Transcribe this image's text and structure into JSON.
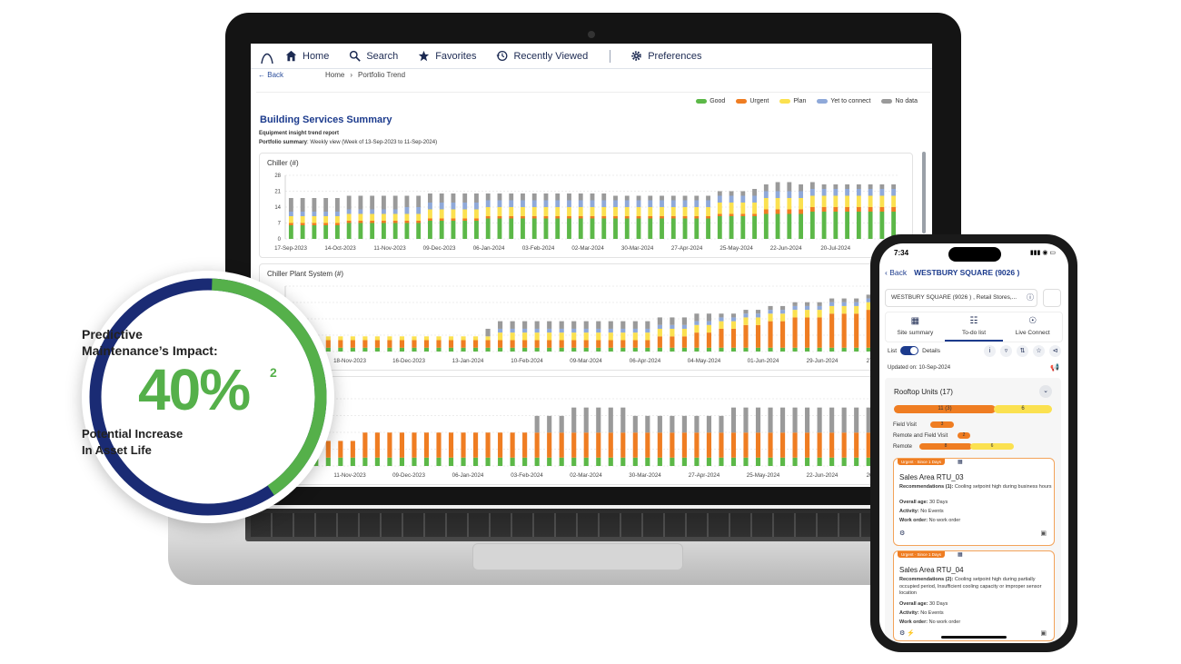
{
  "nav": {
    "home": "Home",
    "search": "Search",
    "favorites": "Favorites",
    "recently_viewed": "Recently Viewed",
    "preferences": "Preferences"
  },
  "breadcrumb": {
    "back": "Back",
    "home": "Home",
    "current": "Portfolio Trend"
  },
  "legend": [
    {
      "label": "Good",
      "color": "#5cb848"
    },
    {
      "label": "Urgent",
      "color": "#ef7d22"
    },
    {
      "label": "Plan",
      "color": "#fbe150"
    },
    {
      "label": "Yet to connect",
      "color": "#8fa9d9"
    },
    {
      "label": "No data",
      "color": "#9a9a9a"
    }
  ],
  "report": {
    "title": "Building Services Summary",
    "subtitle": "Equipment insight trend report",
    "summary_label": "Portfolio summary",
    "summary_text": ": Weekly view (Week of 13-Sep-2023 to 11-Sep-2024)"
  },
  "chart_data": [
    {
      "type": "bar",
      "title": "Chiller (#)",
      "stacked": true,
      "ylim": [
        0,
        28
      ],
      "yticks": [
        0,
        7,
        14,
        21,
        28
      ],
      "xtick_labels": [
        "17-Sep-2023",
        "14-Oct-2023",
        "11-Nov-2023",
        "09-Dec-2023",
        "06-Jan-2024",
        "03-Feb-2024",
        "02-Mar-2024",
        "30-Mar-2024",
        "27-Apr-2024",
        "25-May-2024",
        "22-Jun-2024",
        "20-Jul-2024",
        "31"
      ],
      "series": [
        {
          "name": "Good",
          "values": [
            6,
            6,
            6,
            6,
            6,
            7,
            7,
            7,
            7,
            7,
            7,
            7,
            8,
            8,
            8,
            8,
            8,
            9,
            9,
            9,
            9,
            9,
            9,
            9,
            9,
            9,
            9,
            9,
            9,
            9,
            9,
            9,
            9,
            9,
            9,
            9,
            9,
            10,
            10,
            10,
            10,
            11,
            11,
            11,
            11,
            12,
            12,
            12,
            12,
            12,
            12,
            12,
            12
          ]
        },
        {
          "name": "Urgent",
          "values": [
            1,
            1,
            1,
            1,
            1,
            1,
            1,
            1,
            1,
            1,
            1,
            1,
            1,
            1,
            1,
            1,
            1,
            1,
            1,
            1,
            1,
            1,
            1,
            1,
            1,
            1,
            1,
            1,
            1,
            1,
            1,
            1,
            1,
            1,
            1,
            1,
            1,
            1,
            1,
            1,
            1,
            2,
            2,
            2,
            2,
            2,
            2,
            2,
            2,
            2,
            2,
            2,
            2
          ]
        },
        {
          "name": "Plan",
          "values": [
            3,
            3,
            3,
            3,
            3,
            3,
            3,
            3,
            3,
            3,
            3,
            3,
            4,
            4,
            4,
            4,
            4,
            4,
            4,
            4,
            4,
            4,
            4,
            4,
            4,
            4,
            4,
            4,
            4,
            4,
            4,
            4,
            4,
            4,
            4,
            4,
            4,
            5,
            5,
            5,
            5,
            5,
            5,
            5,
            5,
            5,
            5,
            5,
            5,
            5,
            5,
            5,
            5
          ]
        },
        {
          "name": "Yet to connect",
          "values": [
            2,
            2,
            2,
            2,
            2,
            2,
            2,
            2,
            2,
            2,
            3,
            3,
            3,
            3,
            3,
            3,
            3,
            3,
            3,
            3,
            3,
            3,
            3,
            3,
            3,
            3,
            3,
            3,
            3,
            3,
            3,
            3,
            3,
            3,
            3,
            3,
            3,
            3,
            3,
            3,
            3,
            3,
            3,
            3,
            3,
            3,
            3,
            3,
            3,
            3,
            3,
            3,
            3
          ]
        },
        {
          "name": "No data",
          "values": [
            6,
            6,
            6,
            6,
            6,
            6,
            6,
            6,
            6,
            6,
            5,
            5,
            4,
            4,
            4,
            4,
            4,
            3,
            3,
            3,
            3,
            3,
            3,
            3,
            3,
            3,
            3,
            3,
            2,
            2,
            2,
            2,
            2,
            2,
            2,
            2,
            2,
            2,
            2,
            2,
            3,
            3,
            4,
            4,
            3,
            3,
            2,
            2,
            2,
            2,
            2,
            2,
            2
          ]
        }
      ]
    },
    {
      "type": "bar",
      "title": "Chiller Plant System (#)",
      "stacked": true,
      "xtick_labels": [
        "21-Oct-2023",
        "18-Nov-2023",
        "16-Dec-2023",
        "13-Jan-2024",
        "10-Feb-2024",
        "09-Mar-2024",
        "06-Apr-2024",
        "04-May-2024",
        "01-Jun-2024",
        "29-Jun-2024",
        "27-Jul-2024"
      ],
      "series": [
        {
          "name": "Good",
          "values": [
            1,
            1,
            1,
            1,
            1,
            1,
            1,
            1,
            1,
            1,
            1,
            1,
            1,
            1,
            1,
            1,
            1,
            1,
            1,
            1,
            1,
            1,
            1,
            1,
            1,
            1,
            1,
            1,
            1,
            1,
            1,
            1,
            1,
            1,
            1,
            1,
            1,
            1,
            1,
            1,
            1,
            1,
            1,
            1,
            1,
            1,
            1,
            1,
            1,
            1
          ]
        },
        {
          "name": "Urgent",
          "values": [
            2,
            2,
            2,
            2,
            2,
            2,
            2,
            2,
            2,
            2,
            2,
            2,
            2,
            2,
            2,
            2,
            2,
            2,
            2,
            2,
            2,
            2,
            2,
            2,
            2,
            2,
            2,
            2,
            2,
            2,
            3,
            3,
            3,
            4,
            4,
            5,
            5,
            6,
            6,
            7,
            7,
            8,
            8,
            8,
            9,
            9,
            9,
            10,
            10,
            10
          ]
        },
        {
          "name": "Plan",
          "values": [
            1,
            1,
            1,
            1,
            1,
            1,
            1,
            1,
            1,
            1,
            1,
            1,
            1,
            1,
            1,
            1,
            1,
            2,
            2,
            2,
            2,
            2,
            2,
            2,
            2,
            2,
            2,
            2,
            2,
            2,
            2,
            2,
            2,
            2,
            2,
            2,
            2,
            2,
            2,
            2,
            2,
            2,
            2,
            2,
            2,
            2,
            2,
            2,
            2,
            2
          ]
        },
        {
          "name": "Yet to connect",
          "values": [
            0,
            0,
            0,
            0,
            0,
            0,
            0,
            0,
            0,
            0,
            0,
            0,
            0,
            0,
            0,
            0,
            0,
            1,
            1,
            1,
            1,
            1,
            1,
            1,
            1,
            1,
            1,
            1,
            1,
            1,
            1,
            1,
            1,
            1,
            1,
            1,
            1,
            1,
            1,
            1,
            1,
            1,
            1,
            1,
            1,
            1,
            1,
            1,
            1,
            1
          ]
        },
        {
          "name": "No data",
          "values": [
            0,
            0,
            0,
            0,
            0,
            0,
            0,
            0,
            0,
            0,
            0,
            0,
            0,
            0,
            0,
            0,
            2,
            2,
            2,
            2,
            2,
            2,
            2,
            2,
            2,
            2,
            2,
            2,
            2,
            2,
            2,
            2,
            2,
            2,
            2,
            1,
            1,
            1,
            1,
            1,
            1,
            1,
            1,
            1,
            1,
            1,
            1,
            1,
            1,
            1
          ]
        }
      ]
    },
    {
      "type": "bar",
      "title": "",
      "stacked": true,
      "xtick_labels": [
        "14-Oct-2023",
        "11-Nov-2023",
        "09-Dec-2023",
        "06-Jan-2024",
        "03-Feb-2024",
        "02-Mar-2024",
        "30-Mar-2024",
        "27-Apr-2024",
        "25-May-2024",
        "22-Jun-2024",
        "20-Jul-2024"
      ],
      "series": [
        {
          "name": "Good",
          "values": [
            1,
            1,
            1,
            1,
            1,
            1,
            1,
            1,
            1,
            1,
            1,
            1,
            1,
            1,
            1,
            1,
            1,
            1,
            1,
            1,
            1,
            1,
            1,
            1,
            1,
            1,
            1,
            1,
            1,
            1,
            1,
            1,
            1,
            1,
            1,
            1,
            1,
            1,
            1,
            1,
            1,
            1,
            1,
            1,
            1,
            1,
            1,
            1,
            1,
            1
          ]
        },
        {
          "name": "Urgent",
          "values": [
            2,
            2,
            2,
            2,
            2,
            2,
            3,
            3,
            3,
            3,
            3,
            3,
            3,
            3,
            3,
            3,
            3,
            3,
            3,
            3,
            3,
            3,
            3,
            3,
            3,
            3,
            3,
            3,
            3,
            3,
            3,
            3,
            3,
            3,
            3,
            3,
            3,
            3,
            3,
            3,
            3,
            3,
            3,
            3,
            3,
            3,
            3,
            3,
            3,
            3
          ]
        },
        {
          "name": "Plan",
          "values": [
            0,
            0,
            0,
            0,
            0,
            0,
            0,
            0,
            0,
            0,
            0,
            0,
            0,
            0,
            0,
            0,
            0,
            0,
            0,
            0,
            0,
            0,
            0,
            0,
            0,
            0,
            0,
            0,
            0,
            0,
            0,
            0,
            0,
            0,
            0,
            0,
            0,
            0,
            0,
            0,
            0,
            0,
            0,
            0,
            0,
            0,
            0,
            0,
            0,
            0
          ]
        },
        {
          "name": "Yet to connect",
          "values": [
            0,
            0,
            0,
            0,
            0,
            0,
            0,
            0,
            0,
            0,
            0,
            0,
            0,
            0,
            0,
            0,
            0,
            0,
            0,
            0,
            0,
            0,
            0,
            0,
            0,
            0,
            0,
            0,
            0,
            0,
            0,
            0,
            0,
            0,
            0,
            0,
            0,
            0,
            0,
            0,
            0,
            0,
            0,
            0,
            0,
            0,
            0,
            0,
            0,
            0
          ]
        },
        {
          "name": "No data",
          "values": [
            0,
            0,
            0,
            0,
            0,
            0,
            0,
            0,
            0,
            0,
            0,
            0,
            0,
            0,
            0,
            0,
            0,
            0,
            0,
            0,
            2,
            2,
            2,
            3,
            3,
            3,
            3,
            3,
            2,
            2,
            2,
            2,
            2,
            2,
            2,
            2,
            3,
            3,
            3,
            3,
            3,
            3,
            3,
            3,
            3,
            3,
            3,
            3,
            3,
            3
          ]
        }
      ]
    }
  ],
  "donut": {
    "line1": "Predictive",
    "line2": "Maintenance’s Impact:",
    "value": "40%",
    "footnote": "2",
    "line3": "Potential Increase",
    "line4": "In Asset Life",
    "fraction": 0.4,
    "colors": {
      "filled": "#55b04a",
      "track": "#1a2b74"
    }
  },
  "phone": {
    "time": "7:34",
    "back": "Back",
    "site_title": "WESTBURY SQUARE (9026 )",
    "site_select": "WESTBURY SQUARE (9026 ) , Retail Stores,...",
    "tabs": [
      {
        "label": "Site summary",
        "icon": "summary-icon"
      },
      {
        "label": "To-do list",
        "icon": "todo-icon",
        "active": true
      },
      {
        "label": "Live Connect",
        "icon": "broadcast-icon"
      }
    ],
    "toggle_left": "List",
    "toggle_right": "Details",
    "updated": "Updated on: 10-Sep-2024",
    "section_title": "Rooftop Units (17)",
    "summary_bar": {
      "urgent": "11 (3)",
      "plan": "6"
    },
    "rows": [
      {
        "label": "Field Visit",
        "urgent": "3",
        "plan": ""
      },
      {
        "label": "Remote and Field Visit",
        "urgent": "2",
        "plan": ""
      },
      {
        "label": "Remote",
        "urgent": "8",
        "plan": "6"
      }
    ],
    "cards": [
      {
        "badge": "Urgent · Since 1 Days",
        "title": "Sales Area RTU_03",
        "rec_label": "Recommendations (1):",
        "rec_text": "Cooling setpoint high during business hours",
        "age_label": "Overall age:",
        "age": "30 Days",
        "activity_label": "Activity:",
        "activity": "No Events",
        "wo_label": "Work order:",
        "wo": "No work order"
      },
      {
        "badge": "Urgent · Since 1 Days",
        "title": "Sales Area RTU_04",
        "rec_label": "Recommendations (2):",
        "rec_text": "Cooling setpoint high during partially occupied period, Insufficient cooling capacity or improper sensor location",
        "age_label": "Overall age:",
        "age": "30 Days",
        "activity_label": "Activity:",
        "activity": "No Events",
        "wo_label": "Work order:",
        "wo": "No work order"
      }
    ]
  }
}
